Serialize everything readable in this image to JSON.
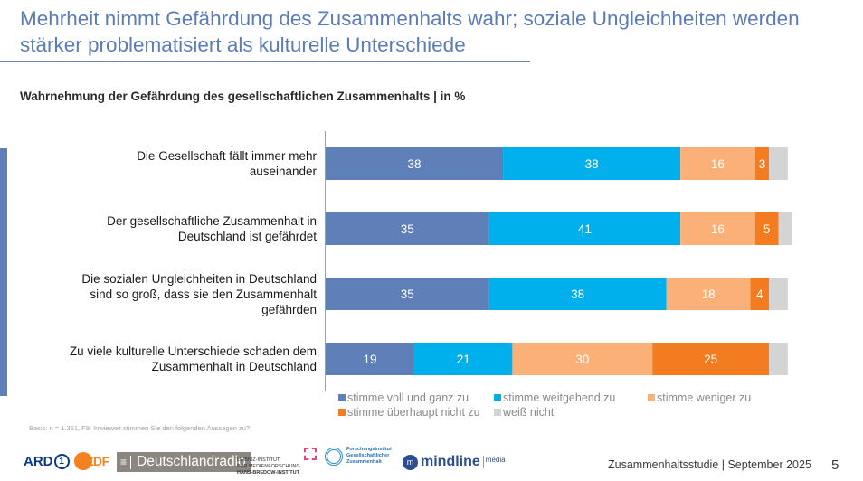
{
  "header": {
    "title": "Mehrheit nimmt Gefährdung des Zusammenhalts wahr; soziale Ungleichheiten werden stärker problematisiert als kulturelle Unterschiede"
  },
  "colors": {
    "accent": "#5f7fb8",
    "title": "#5b7cb8",
    "series": [
      "#5f7fb8",
      "#00b0ec",
      "#fbb078",
      "#f47c20",
      "#d4d4d4"
    ]
  },
  "chart_data": {
    "type": "bar",
    "orientation": "horizontal-stacked",
    "title": "Wahrnehmung der Gefährdung des gesellschaftlichen Zusammenhalts | in %",
    "xlabel": "",
    "ylabel": "",
    "xlim": [
      0,
      100
    ],
    "grid": false,
    "legend_position": "bottom",
    "categories": [
      "Die Gesellschaft fällt immer mehr auseinander",
      "Der gesellschaftliche Zusammenhalt in Deutschland ist gefährdet",
      "Die sozialen Ungleichheiten in Deutschland sind so groß, dass sie den Zusammenhalt gefährden",
      "Zu viele kulturelle Unterschiede schaden dem Zusammenhalt in Deutschland"
    ],
    "series": [
      {
        "name": "stimme voll und ganz zu",
        "values": [
          38,
          35,
          35,
          19
        ],
        "labeled": true
      },
      {
        "name": "stimme weitgehend zu",
        "values": [
          38,
          41,
          38,
          21
        ],
        "labeled": true
      },
      {
        "name": "stimme weniger zu",
        "values": [
          16,
          16,
          18,
          30
        ],
        "labeled": true
      },
      {
        "name": "stimme überhaupt nicht zu",
        "values": [
          3,
          5,
          4,
          25
        ],
        "labeled": true
      },
      {
        "name": "weiß nicht",
        "values": [
          4,
          3,
          4,
          4
        ],
        "labeled": false
      }
    ]
  },
  "category_lines": [
    [
      "Die Gesellschaft fällt immer mehr",
      "auseinander"
    ],
    [
      "Der gesellschaftliche Zusammenhalt in",
      "Deutschland ist gefährdet"
    ],
    [
      "Die sozialen Ungleichheiten in Deutschland",
      "sind so groß, dass sie den Zusammenhalt",
      "gefährden"
    ],
    [
      "Zu viele kulturelle Unterschiede schaden dem",
      "Zusammenhalt in Deutschland"
    ]
  ],
  "footnote": "Basis: n = 1.351, F9: Inwieweit stimmen Sie den folgenden Aussagen zu?",
  "logos": {
    "ard": "ARD",
    "ard_num": "1",
    "zdf": "ZDF",
    "deutschlandradio": "Deutschlandradio",
    "hbi_lines": [
      "LEIBNIZ-INSTITUT",
      "FÜR MEDIENFORSCHUNG",
      "HANS-BREDOW-INSTITUT"
    ],
    "fgz_lines": [
      "Forschungsinstitut",
      "Gesellschaftlicher",
      "Zusammenhalt"
    ],
    "mindline": "mindline",
    "mindline_media": "media"
  },
  "footer": {
    "study": "Zusammenhaltsstudie | September 2025",
    "page": "5"
  }
}
